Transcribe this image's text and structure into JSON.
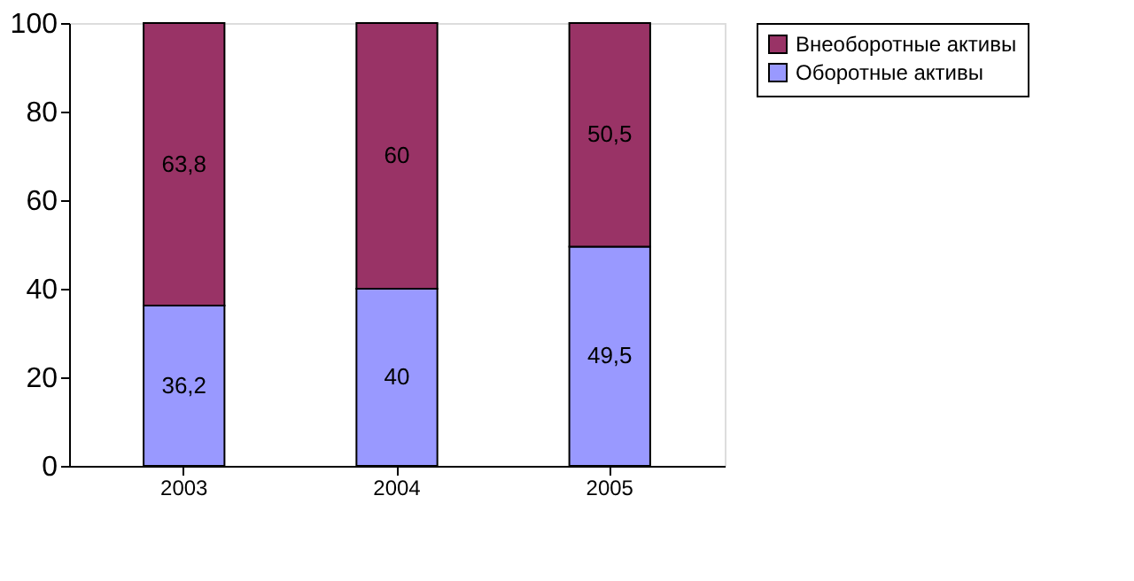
{
  "chart_data": {
    "type": "bar",
    "stacked": true,
    "categories": [
      "2003",
      "2004",
      "2005"
    ],
    "series": [
      {
        "name": "Оборотные активы",
        "color": "#9999ff",
        "values": [
          36.2,
          40,
          49.5
        ],
        "value_labels": [
          "36,2",
          "40",
          "49,5"
        ]
      },
      {
        "name": "Внеоборотные активы",
        "color": "#993366",
        "values": [
          63.8,
          60,
          50.5
        ],
        "value_labels": [
          "63,8",
          "60",
          "50,5"
        ]
      }
    ],
    "ylim": [
      0,
      100
    ],
    "yticks": [
      0,
      20,
      40,
      60,
      80,
      100
    ],
    "grid": false,
    "legend": "right"
  }
}
